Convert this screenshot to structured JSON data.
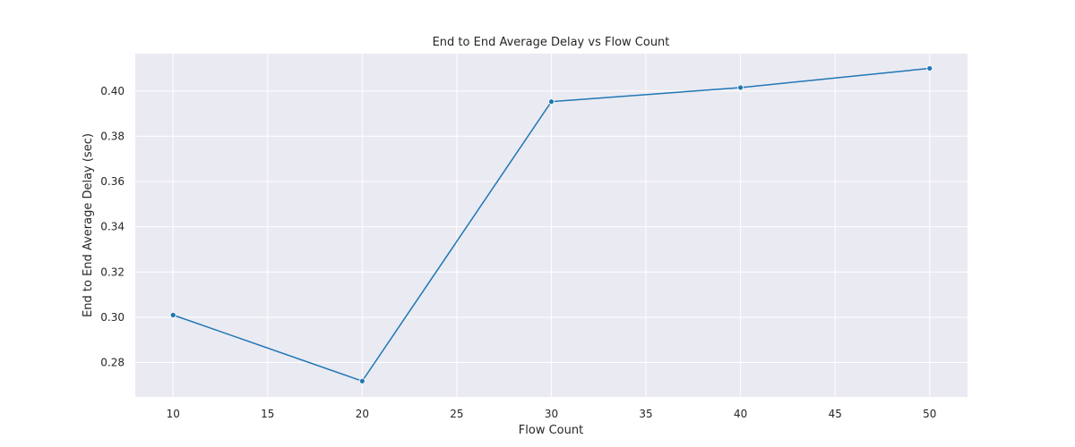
{
  "chart_data": {
    "type": "line",
    "title": "End to End Average Delay vs Flow Count",
    "xlabel": "Flow Count",
    "ylabel": "End to End Average Delay (sec)",
    "x": [
      10,
      20,
      30,
      40,
      50
    ],
    "series": [
      {
        "values": [
          0.301,
          0.2718,
          0.3953,
          0.4015,
          0.41
        ]
      }
    ],
    "xlim": [
      8,
      52
    ],
    "ylim": [
      0.2648,
      0.4165
    ],
    "xticks": [
      10,
      15,
      20,
      25,
      30,
      35,
      40,
      45,
      50
    ],
    "xtick_labels": [
      "10",
      "15",
      "20",
      "25",
      "30",
      "35",
      "40",
      "45",
      "50"
    ],
    "yticks": [
      0.28,
      0.3,
      0.32,
      0.34,
      0.36,
      0.38,
      0.4
    ],
    "ytick_labels": [
      "0.28",
      "0.30",
      "0.32",
      "0.34",
      "0.36",
      "0.38",
      "0.40"
    ],
    "grid": true,
    "colors": {
      "background": "#eaeaf2",
      "grid": "#ffffff",
      "line": "#1f77b4",
      "text": "#262626"
    }
  }
}
